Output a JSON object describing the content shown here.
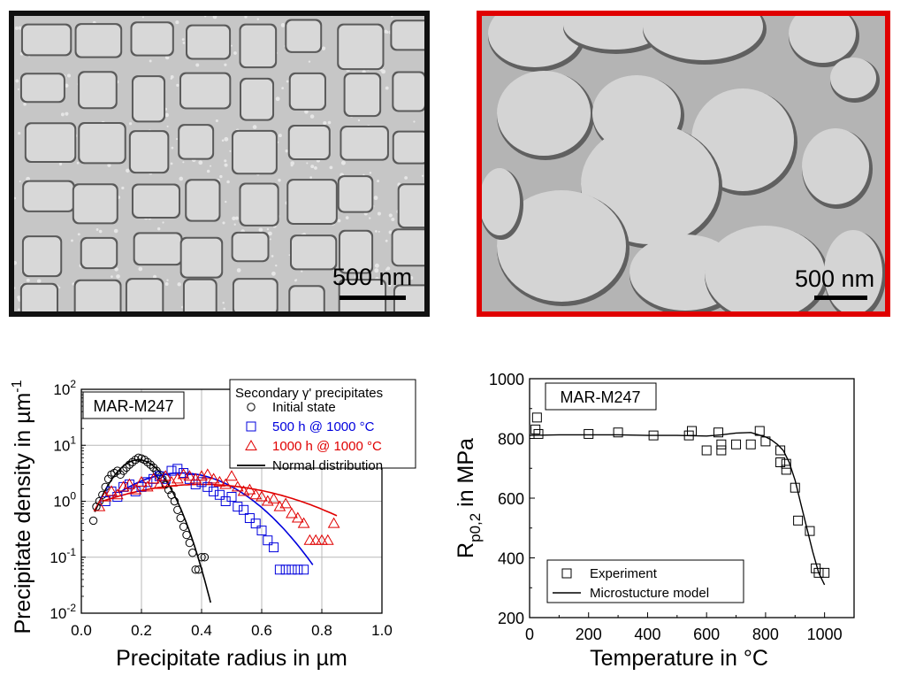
{
  "micrographs": [
    {
      "scale_label": "500 nm",
      "border_color": "#111111"
    },
    {
      "scale_label": "500 nm",
      "border_color": "#e00000"
    }
  ],
  "chart_data": [
    {
      "type": "scatter",
      "xlabel": "Precipitate radius in µm",
      "ylabel": "Precipitate density in µm",
      "ylabel_sup": "-1",
      "xlim": [
        0.0,
        1.0
      ],
      "ylim": [
        0.01,
        100
      ],
      "yscale": "log",
      "grid": true,
      "x_ticks": [
        "0.0",
        "0.2",
        "0.4",
        "0.6",
        "0.8",
        "1.0"
      ],
      "y_ticks": [
        {
          "base": "10",
          "exp": "2",
          "v": 100
        },
        {
          "base": "10",
          "exp": "1",
          "v": 10
        },
        {
          "base": "10",
          "exp": "0",
          "v": 1
        },
        {
          "base": "10",
          "exp": "-1",
          "v": 0.1
        },
        {
          "base": "10",
          "exp": "-2",
          "v": 0.01
        }
      ],
      "annotation": "MAR-M247",
      "legend_title": "Secondary γ' precipitates",
      "legend_position": "top-right",
      "series": [
        {
          "name": "Initial state",
          "marker": "circle",
          "color": "#000000",
          "x": [
            0.04,
            0.05,
            0.06,
            0.07,
            0.08,
            0.09,
            0.1,
            0.11,
            0.12,
            0.13,
            0.14,
            0.15,
            0.16,
            0.17,
            0.18,
            0.19,
            0.2,
            0.21,
            0.22,
            0.23,
            0.24,
            0.25,
            0.26,
            0.27,
            0.28,
            0.29,
            0.3,
            0.31,
            0.32,
            0.33,
            0.34,
            0.35,
            0.36,
            0.37,
            0.38,
            0.39,
            0.4,
            0.41
          ],
          "y": [
            0.45,
            0.8,
            1.0,
            1.3,
            1.8,
            2.5,
            3.0,
            3.2,
            3.5,
            3.0,
            3.5,
            4.0,
            4.5,
            5.0,
            5.5,
            6.0,
            5.8,
            5.5,
            5.0,
            4.5,
            4.0,
            3.5,
            3.0,
            2.5,
            2.0,
            1.6,
            1.3,
            1.0,
            0.7,
            0.5,
            0.35,
            0.25,
            0.18,
            0.12,
            0.06,
            0.06,
            0.1,
            0.1
          ]
        },
        {
          "name": "500 h @ 1000 °C",
          "marker": "square",
          "color": "#0000dd",
          "x": [
            0.08,
            0.1,
            0.12,
            0.14,
            0.16,
            0.18,
            0.2,
            0.22,
            0.24,
            0.26,
            0.28,
            0.3,
            0.32,
            0.34,
            0.36,
            0.38,
            0.4,
            0.42,
            0.44,
            0.46,
            0.48,
            0.5,
            0.52,
            0.54,
            0.56,
            0.58,
            0.6,
            0.62,
            0.64,
            0.66,
            0.68,
            0.7,
            0.72,
            0.74
          ],
          "y": [
            1.0,
            1.5,
            1.2,
            1.8,
            2.0,
            1.5,
            1.8,
            2.2,
            2.5,
            2.8,
            2.5,
            3.5,
            3.8,
            3.2,
            2.5,
            2.0,
            2.2,
            1.8,
            1.5,
            1.3,
            1.0,
            1.2,
            0.8,
            0.7,
            0.5,
            0.4,
            0.3,
            0.2,
            0.15,
            0.06,
            0.06,
            0.06,
            0.06,
            0.06
          ]
        },
        {
          "name": "1000 h @ 1000 °C",
          "marker": "triangle",
          "color": "#e00000",
          "x": [
            0.06,
            0.08,
            0.1,
            0.12,
            0.14,
            0.16,
            0.18,
            0.2,
            0.22,
            0.24,
            0.26,
            0.28,
            0.3,
            0.32,
            0.34,
            0.36,
            0.38,
            0.4,
            0.42,
            0.44,
            0.46,
            0.48,
            0.5,
            0.52,
            0.54,
            0.56,
            0.58,
            0.6,
            0.62,
            0.64,
            0.66,
            0.68,
            0.7,
            0.72,
            0.74,
            0.76,
            0.78,
            0.8,
            0.82,
            0.84
          ],
          "y": [
            0.8,
            1.2,
            1.5,
            1.3,
            1.8,
            2.0,
            1.6,
            2.2,
            1.8,
            2.5,
            2.0,
            2.8,
            2.2,
            2.5,
            3.0,
            2.8,
            2.5,
            2.8,
            3.0,
            2.5,
            2.2,
            2.0,
            2.8,
            1.8,
            1.5,
            1.6,
            1.3,
            1.2,
            1.0,
            1.1,
            0.8,
            0.9,
            0.6,
            0.5,
            0.4,
            0.2,
            0.2,
            0.2,
            0.2,
            0.4
          ]
        },
        {
          "name": "Normal distribution",
          "marker": "line",
          "color": "#000000"
        }
      ],
      "fit_curves": [
        {
          "series": "Initial state",
          "mu": 0.19,
          "sigma": 0.07,
          "peak": 5.5,
          "x_range": [
            0.045,
            0.43
          ],
          "color": "#000000"
        },
        {
          "series": "500 h @ 1000 °C",
          "mu": 0.33,
          "sigma": 0.16,
          "peak": 3.2,
          "x_range": [
            0.13,
            0.77
          ],
          "color": "#0000dd"
        },
        {
          "series": "1000 h @ 1000 °C",
          "mu": 0.4,
          "sigma": 0.28,
          "peak": 2.0,
          "x_range": [
            0.07,
            0.85
          ],
          "color": "#e00000"
        }
      ]
    },
    {
      "type": "scatter",
      "xlabel": "Temperature in °C",
      "ylabel_main": "R",
      "ylabel_sub": "p0,2",
      "ylabel_rest": " in MPa",
      "xlim": [
        0,
        1100
      ],
      "ylim": [
        200,
        1000
      ],
      "grid": false,
      "x_ticks": [
        0,
        200,
        400,
        600,
        800,
        1000
      ],
      "y_ticks": [
        200,
        400,
        600,
        800,
        1000
      ],
      "annotation": "MAR-M247",
      "legend_position": "bottom-left",
      "series": [
        {
          "name": "Experiment",
          "marker": "square",
          "color": "#000000",
          "x": [
            20,
            25,
            30,
            200,
            300,
            420,
            540,
            550,
            600,
            640,
            650,
            650,
            700,
            750,
            780,
            800,
            850,
            850,
            870,
            870,
            900,
            910,
            950,
            970,
            980,
            1000
          ],
          "y": [
            830,
            870,
            815,
            815,
            820,
            810,
            810,
            825,
            760,
            820,
            780,
            760,
            780,
            780,
            825,
            790,
            760,
            720,
            715,
            695,
            635,
            525,
            490,
            365,
            350,
            350
          ]
        },
        {
          "name": "Microstucture model",
          "marker": "line",
          "color": "#000000",
          "x": [
            0,
            100,
            200,
            300,
            400,
            500,
            600,
            650,
            700,
            750,
            800,
            820,
            840,
            860,
            880,
            900,
            920,
            940,
            960,
            980,
            1000
          ],
          "y": [
            810,
            812,
            812,
            812,
            810,
            810,
            808,
            812,
            818,
            820,
            805,
            795,
            780,
            760,
            720,
            660,
            580,
            500,
            420,
            350,
            310
          ]
        }
      ]
    }
  ]
}
